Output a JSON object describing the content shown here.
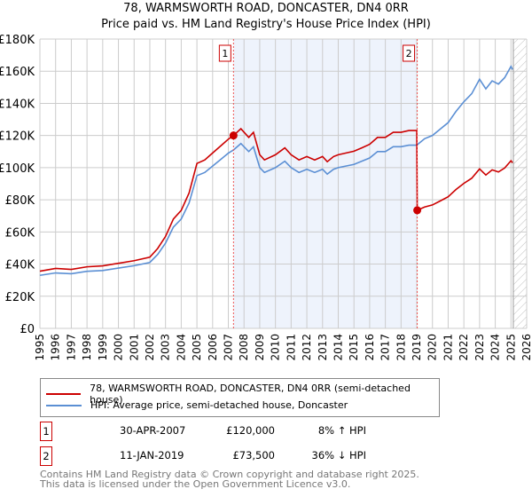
{
  "chart_data": {
    "type": "line",
    "title": "78, WARMSWORTH ROAD, DONCASTER, DN4 0RR",
    "subtitle": "Price paid vs. HM Land Registry's House Price Index (HPI)",
    "xlim": [
      1995,
      2026
    ],
    "ylim": [
      0,
      180000
    ],
    "yticks": [
      0,
      20000,
      40000,
      60000,
      80000,
      100000,
      120000,
      140000,
      160000,
      180000
    ],
    "ytick_labels": [
      "£0",
      "£20K",
      "£40K",
      "£60K",
      "£80K",
      "£100K",
      "£120K",
      "£140K",
      "£160K",
      "£180K"
    ],
    "xtick_labels": [
      "1995",
      "1996",
      "1997",
      "1998",
      "1999",
      "2000",
      "2001",
      "2002",
      "2003",
      "2004",
      "2005",
      "2006",
      "2007",
      "2008",
      "2009",
      "2010",
      "2011",
      "2012",
      "2013",
      "2014",
      "2015",
      "2016",
      "2017",
      "2018",
      "2019",
      "2020",
      "2021",
      "2022",
      "2023",
      "2024",
      "2025",
      "2026"
    ],
    "grid": true,
    "shaded_range": [
      2007.33,
      2019.03
    ],
    "hatched_from": 2025.15,
    "series": [
      {
        "name": "78, WARMSWORTH ROAD, DONCASTER, DN4 0RR (semi-detached house)",
        "color": "#cc0000",
        "x": [
          1995,
          1996,
          1997,
          1998,
          1999,
          2000,
          2001,
          2002,
          2002.5,
          2003,
          2003.5,
          2004,
          2004.5,
          2005,
          2005.5,
          2006,
          2006.5,
          2007,
          2007.33,
          2007.8,
          2008.3,
          2008.6,
          2009,
          2009.3,
          2010,
          2010.6,
          2011,
          2011.5,
          2012,
          2012.5,
          2013,
          2013.3,
          2013.7,
          2014,
          2015,
          2015.5,
          2016,
          2016.5,
          2017,
          2017.5,
          2018,
          2018.5,
          2019.0,
          2019.03,
          2019.5,
          2020,
          2020.5,
          2021,
          2021.5,
          2022,
          2022.5,
          2023,
          2023.4,
          2023.8,
          2024.2,
          2024.6,
          2025,
          2025.1
        ],
        "y": [
          35600,
          37300,
          36700,
          38300,
          38900,
          40500,
          42100,
          44300,
          49700,
          57200,
          68000,
          73400,
          84200,
          102600,
          104800,
          109100,
          113400,
          117700,
          120000,
          124200,
          118800,
          122000,
          108000,
          104800,
          108000,
          112300,
          108000,
          104800,
          106900,
          104800,
          106900,
          103700,
          106900,
          108000,
          110200,
          112300,
          114500,
          118800,
          118800,
          122000,
          122000,
          123100,
          123100,
          73500,
          75500,
          76800,
          79300,
          81900,
          86400,
          90200,
          93400,
          99200,
          95400,
          98600,
          97300,
          99800,
          104300,
          103000
        ]
      },
      {
        "name": "HPI: Average price, semi-detached house, Doncaster",
        "color": "#5b8fd4",
        "x": [
          1995,
          1996,
          1997,
          1998,
          1999,
          2000,
          2001,
          2002,
          2002.5,
          2003,
          2003.5,
          2004,
          2004.5,
          2005,
          2005.5,
          2006,
          2006.5,
          2007,
          2007.33,
          2007.8,
          2008.3,
          2008.6,
          2009,
          2009.3,
          2010,
          2010.6,
          2011,
          2011.5,
          2012,
          2012.5,
          2013,
          2013.3,
          2013.7,
          2014,
          2015,
          2015.5,
          2016,
          2016.5,
          2017,
          2017.5,
          2018,
          2018.5,
          2019,
          2019.5,
          2020,
          2020.5,
          2021,
          2021.5,
          2022,
          2022.5,
          2023,
          2023.4,
          2023.8,
          2024.2,
          2024.6,
          2025,
          2025.1
        ],
        "y": [
          33000,
          34500,
          34000,
          35500,
          36000,
          37500,
          39000,
          41000,
          46000,
          53000,
          63000,
          68000,
          78000,
          95000,
          97000,
          101000,
          105000,
          109000,
          111000,
          115000,
          110000,
          113000,
          100000,
          97000,
          100000,
          104000,
          100000,
          97000,
          99000,
          97000,
          99000,
          96000,
          99000,
          100000,
          102000,
          104000,
          106000,
          110000,
          110000,
          113000,
          113000,
          114000,
          114000,
          118000,
          120000,
          124000,
          128000,
          135000,
          141000,
          146000,
          155000,
          149000,
          154000,
          152000,
          156000,
          163000,
          161000
        ]
      }
    ],
    "annotations": [
      {
        "label": "1",
        "x": 2007.33,
        "y": 120000
      },
      {
        "label": "2",
        "x": 2019.03,
        "y": 73500
      }
    ]
  },
  "legend": {
    "items": [
      "78, WARMSWORTH ROAD, DONCASTER, DN4 0RR (semi-detached house)",
      "HPI: Average price, semi-detached house, Doncaster"
    ]
  },
  "transactions": [
    {
      "num": "1",
      "date": "30-APR-2007",
      "price": "£120,000",
      "hpi": "8% ↑ HPI"
    },
    {
      "num": "2",
      "date": "11-JAN-2019",
      "price": "£73,500",
      "hpi": "36% ↓ HPI"
    }
  ],
  "footer": {
    "line1": "Contains HM Land Registry data © Crown copyright and database right 2025.",
    "line2": "This data is licensed under the Open Government Licence v3.0."
  }
}
